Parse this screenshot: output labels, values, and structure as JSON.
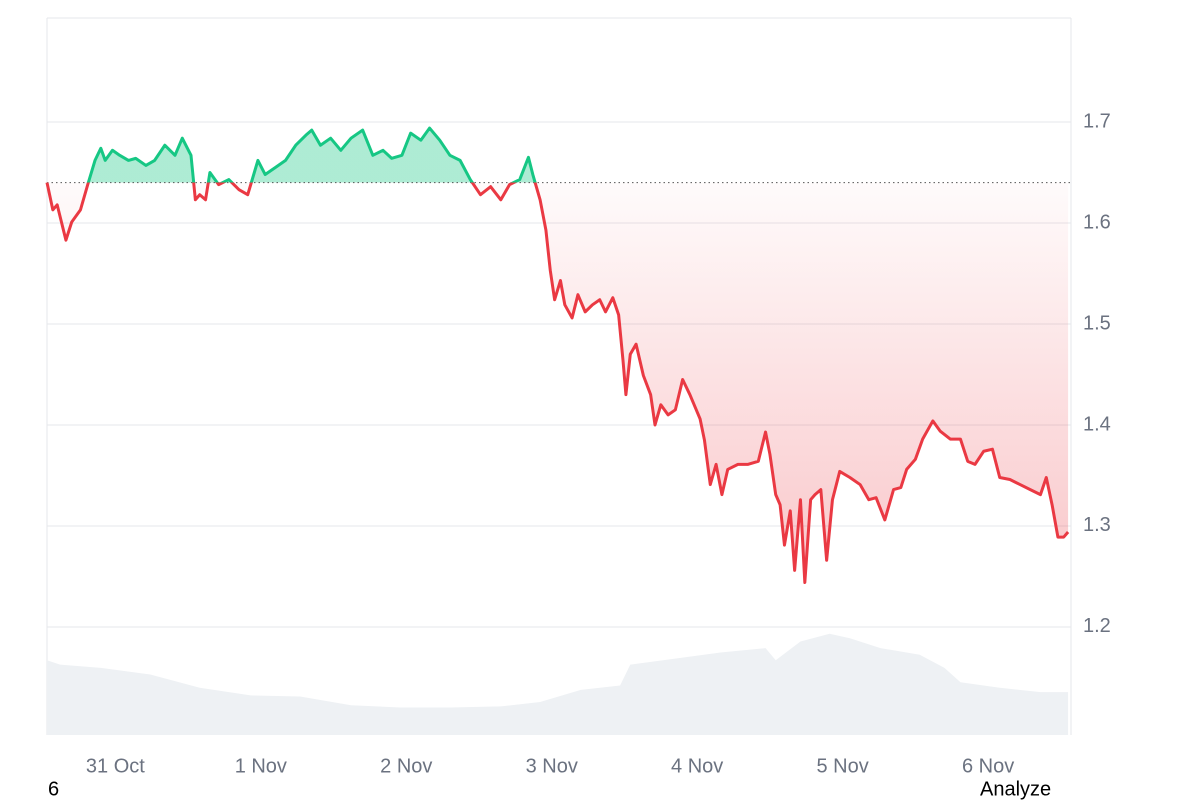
{
  "chart_data": {
    "type": "line",
    "xlim": [
      -0.47,
      6.57
    ],
    "xticks": [
      {
        "value": 0,
        "label": "31 Oct"
      },
      {
        "value": 1,
        "label": "1 Nov"
      },
      {
        "value": 2,
        "label": "2 Nov"
      },
      {
        "value": 3,
        "label": "3 Nov"
      },
      {
        "value": 4,
        "label": "4 Nov"
      },
      {
        "value": 5,
        "label": "5 Nov"
      },
      {
        "value": 6,
        "label": "6 Nov"
      }
    ],
    "ylim": [
      1.093,
      1.803
    ],
    "yticks": [
      1.2,
      1.3,
      1.4,
      1.5,
      1.6,
      1.7
    ],
    "grid": true,
    "baseline": 1.64,
    "up_color": "#16c784",
    "down_color": "#ea3943",
    "x": [
      -0.47,
      -0.43,
      -0.4,
      -0.34,
      -0.3,
      -0.24,
      -0.19,
      -0.14,
      -0.1,
      -0.07,
      -0.02,
      0.03,
      0.09,
      0.14,
      0.21,
      0.27,
      0.34,
      0.41,
      0.46,
      0.52,
      0.55,
      0.58,
      0.62,
      0.65,
      0.71,
      0.78,
      0.85,
      0.91,
      0.98,
      1.03,
      1.1,
      1.17,
      1.24,
      1.31,
      1.35,
      1.41,
      1.48,
      1.55,
      1.62,
      1.7,
      1.77,
      1.84,
      1.9,
      1.97,
      2.03,
      2.1,
      2.16,
      2.23,
      2.3,
      2.37,
      2.44,
      2.51,
      2.58,
      2.65,
      2.71,
      2.78,
      2.84,
      2.87,
      2.92,
      2.96,
      2.99,
      3.02,
      3.06,
      3.09,
      3.14,
      3.18,
      3.23,
      3.28,
      3.33,
      3.37,
      3.42,
      3.46,
      3.49,
      3.51,
      3.54,
      3.58,
      3.63,
      3.68,
      3.71,
      3.75,
      3.8,
      3.85,
      3.9,
      3.95,
      4.02,
      4.05,
      4.09,
      4.13,
      4.17,
      4.21,
      4.28,
      4.35,
      4.42,
      4.47,
      4.5,
      4.54,
      4.57,
      4.6,
      4.64,
      4.67,
      4.71,
      4.74,
      4.78,
      4.81,
      4.85,
      4.89,
      4.93,
      4.98,
      5.05,
      5.12,
      5.18,
      5.23,
      5.29,
      5.35,
      5.4,
      5.44,
      5.5,
      5.55,
      5.62,
      5.67,
      5.74,
      5.81,
      5.86,
      5.91,
      5.97,
      6.03,
      6.08,
      6.15,
      6.22,
      6.29,
      6.36,
      6.4,
      6.44,
      6.48,
      6.52,
      6.55
    ],
    "series": [
      {
        "name": "Price",
        "values": [
          1.64,
          1.613,
          1.618,
          1.583,
          1.601,
          1.613,
          1.638,
          1.662,
          1.674,
          1.662,
          1.672,
          1.667,
          1.662,
          1.664,
          1.657,
          1.662,
          1.677,
          1.667,
          1.684,
          1.667,
          1.623,
          1.628,
          1.623,
          1.65,
          1.638,
          1.643,
          1.633,
          1.628,
          1.662,
          1.648,
          1.655,
          1.662,
          1.677,
          1.687,
          1.692,
          1.677,
          1.684,
          1.672,
          1.684,
          1.692,
          1.667,
          1.672,
          1.664,
          1.667,
          1.689,
          1.682,
          1.694,
          1.682,
          1.667,
          1.662,
          1.643,
          1.628,
          1.636,
          1.623,
          1.638,
          1.643,
          1.665,
          1.648,
          1.623,
          1.593,
          1.553,
          1.524,
          1.543,
          1.519,
          1.506,
          1.529,
          1.512,
          1.519,
          1.524,
          1.512,
          1.526,
          1.509,
          1.464,
          1.43,
          1.47,
          1.48,
          1.449,
          1.43,
          1.4,
          1.42,
          1.41,
          1.415,
          1.445,
          1.43,
          1.406,
          1.385,
          1.341,
          1.361,
          1.331,
          1.356,
          1.361,
          1.361,
          1.364,
          1.393,
          1.371,
          1.331,
          1.321,
          1.281,
          1.315,
          1.256,
          1.326,
          1.244,
          1.326,
          1.331,
          1.336,
          1.266,
          1.326,
          1.354,
          1.348,
          1.341,
          1.326,
          1.328,
          1.306,
          1.336,
          1.338,
          1.356,
          1.366,
          1.386,
          1.404,
          1.394,
          1.386,
          1.386,
          1.364,
          1.361,
          1.374,
          1.376,
          1.348,
          1.346,
          1.341,
          1.336,
          1.331,
          1.348,
          1.321,
          1.289,
          1.289,
          1.294
        ]
      }
    ],
    "volume": {
      "color": "#eef1f4",
      "axis": "y2",
      "x": [
        -0.47,
        -0.38,
        -0.1,
        0.24,
        0.58,
        0.93,
        1.27,
        1.62,
        1.96,
        2.3,
        2.65,
        2.92,
        3.2,
        3.47,
        3.54,
        3.88,
        4.16,
        4.47,
        4.54,
        4.71,
        4.91,
        5.05,
        5.26,
        5.53,
        5.7,
        5.81,
        6.08,
        6.36,
        6.55
      ],
      "values": [
        68,
        64,
        61,
        55,
        43,
        36,
        35,
        27,
        25,
        25,
        26,
        30,
        41,
        45,
        64,
        70,
        75,
        79,
        68,
        85,
        92,
        88,
        79,
        73,
        61,
        48,
        43,
        39,
        39
      ]
    },
    "y2lim": [
      0,
      100
    ]
  },
  "footer": {
    "left": "6",
    "right": "Analyze"
  }
}
